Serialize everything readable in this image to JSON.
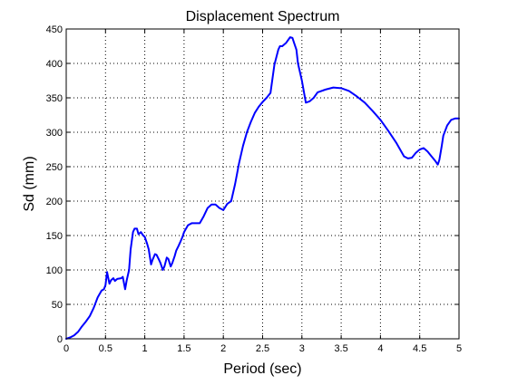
{
  "chart_data": {
    "type": "line",
    "title": "Displacement Spectrum",
    "xlabel": "Period (sec)",
    "ylabel": "Sd (mm)",
    "xlim": [
      0,
      5
    ],
    "ylim": [
      0,
      450
    ],
    "xticks": [
      0,
      0.5,
      1,
      1.5,
      2,
      2.5,
      3,
      3.5,
      4,
      4.5,
      5
    ],
    "xtick_labels": [
      "0",
      "0.5",
      "1",
      "1.5",
      "2",
      "2.5",
      "3",
      "3.5",
      "4",
      "4.5",
      "5"
    ],
    "yticks": [
      0,
      50,
      100,
      150,
      200,
      250,
      300,
      350,
      400,
      450
    ],
    "ytick_labels": [
      "0",
      "50",
      "100",
      "150",
      "200",
      "250",
      "300",
      "350",
      "400",
      "450"
    ],
    "grid": true,
    "grid_style": "dotted",
    "series": [
      {
        "color": "#0000ff",
        "x": [
          0,
          0.05,
          0.1,
          0.15,
          0.2,
          0.25,
          0.3,
          0.35,
          0.4,
          0.45,
          0.48,
          0.5,
          0.52,
          0.55,
          0.57,
          0.6,
          0.62,
          0.65,
          0.7,
          0.72,
          0.75,
          0.77,
          0.8,
          0.82,
          0.85,
          0.87,
          0.9,
          0.92,
          0.95,
          0.98,
          1.0,
          1.03,
          1.05,
          1.08,
          1.1,
          1.13,
          1.15,
          1.18,
          1.2,
          1.23,
          1.25,
          1.28,
          1.3,
          1.33,
          1.35,
          1.38,
          1.4,
          1.43,
          1.45,
          1.48,
          1.5,
          1.55,
          1.6,
          1.65,
          1.7,
          1.75,
          1.8,
          1.85,
          1.9,
          1.95,
          2.0,
          2.05,
          2.1,
          2.15,
          2.2,
          2.25,
          2.3,
          2.35,
          2.4,
          2.45,
          2.5,
          2.55,
          2.6,
          2.65,
          2.7,
          2.72,
          2.75,
          2.8,
          2.85,
          2.88,
          2.9,
          2.93,
          2.95,
          3.0,
          3.05,
          3.1,
          3.15,
          3.2,
          3.3,
          3.4,
          3.5,
          3.6,
          3.7,
          3.8,
          3.9,
          4.0,
          4.1,
          4.2,
          4.3,
          4.35,
          4.4,
          4.45,
          4.5,
          4.55,
          4.6,
          4.65,
          4.7,
          4.73,
          4.75,
          4.78,
          4.8,
          4.85,
          4.9,
          4.95,
          5.0
        ],
        "y": [
          0,
          2,
          5,
          10,
          18,
          25,
          33,
          45,
          60,
          70,
          72,
          78,
          97,
          80,
          85,
          88,
          84,
          87,
          88,
          90,
          72,
          85,
          100,
          130,
          155,
          160,
          160,
          152,
          155,
          150,
          148,
          138,
          130,
          108,
          115,
          123,
          122,
          115,
          110,
          100,
          105,
          118,
          116,
          105,
          110,
          120,
          128,
          135,
          140,
          148,
          155,
          165,
          168,
          168,
          168,
          178,
          190,
          195,
          195,
          190,
          187,
          196,
          200,
          225,
          255,
          280,
          300,
          315,
          328,
          337,
          344,
          350,
          357,
          398,
          420,
          425,
          425,
          430,
          438,
          437,
          430,
          420,
          400,
          375,
          343,
          345,
          350,
          358,
          362,
          365,
          364,
          360,
          352,
          343,
          331,
          318,
          302,
          285,
          265,
          262,
          263,
          270,
          275,
          277,
          272,
          265,
          258,
          253,
          260,
          280,
          295,
          310,
          318,
          320,
          320
        ]
      }
    ]
  }
}
